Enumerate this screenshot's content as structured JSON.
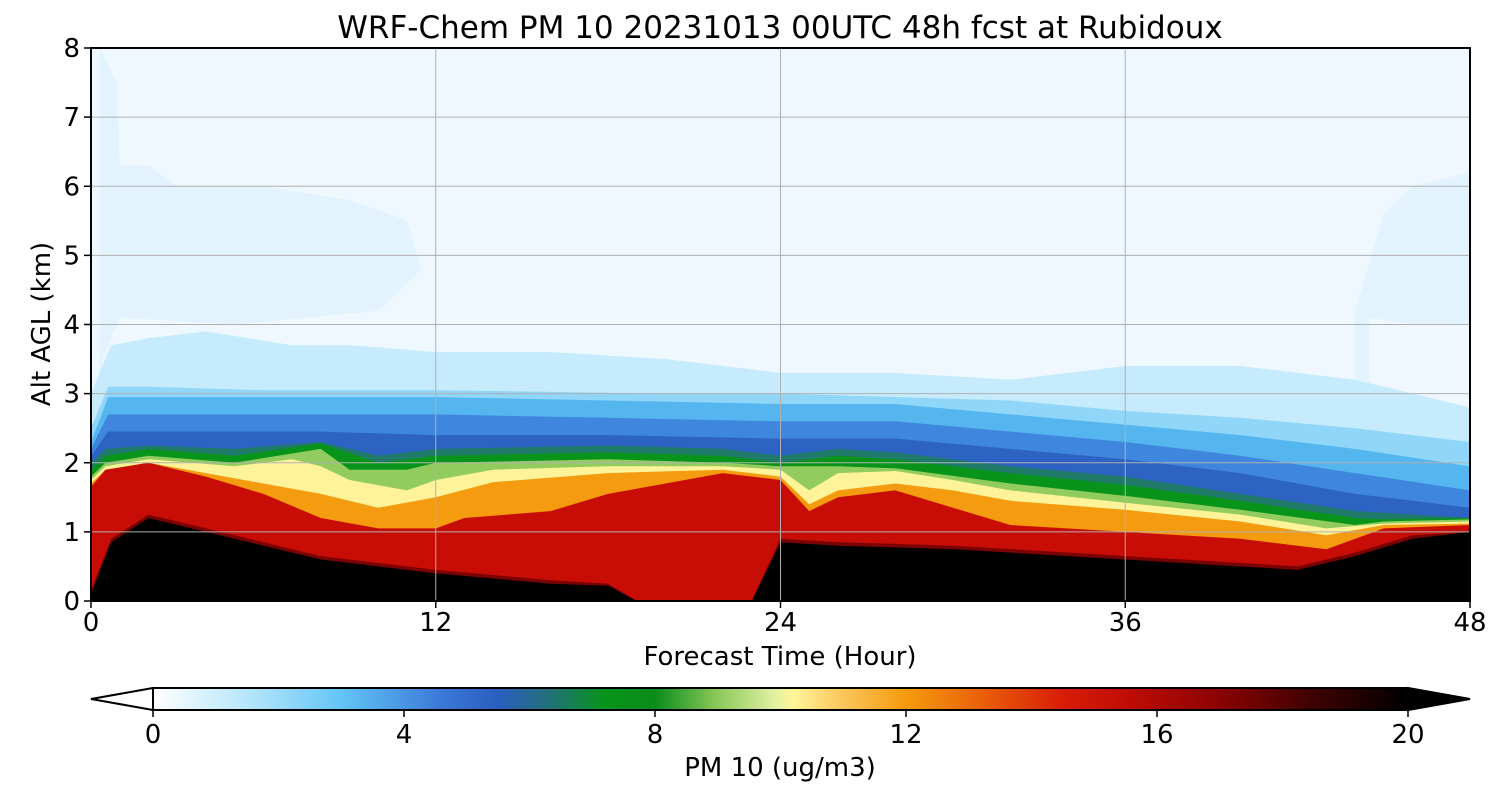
{
  "chart_data": {
    "type": "heatmap",
    "title": "WRF-Chem PM 10  20231013 00UTC 48h fcst at Rubidoux",
    "xlabel": "Forecast Time (Hour)",
    "ylabel": "Alt AGL (km)",
    "xlim": [
      0,
      48
    ],
    "ylim": [
      0,
      8
    ],
    "xticks": [
      0,
      12,
      24,
      36,
      48
    ],
    "yticks": [
      0,
      1,
      2,
      3,
      4,
      5,
      6,
      7,
      8
    ],
    "grid": true,
    "colorbar": {
      "label": "PM 10  (ug/m3)",
      "min": 0,
      "max": 20,
      "ticks": [
        0,
        4,
        8,
        12,
        16,
        20
      ],
      "extend": "both",
      "orientation": "horizontal",
      "stops": [
        {
          "value": 0,
          "color": "#ffffff"
        },
        {
          "value": 1.5,
          "color": "#b7e6fb"
        },
        {
          "value": 3,
          "color": "#63c5f5"
        },
        {
          "value": 4.6,
          "color": "#3a78d8"
        },
        {
          "value": 5.5,
          "color": "#2a5fbf"
        },
        {
          "value": 6.3,
          "color": "#23707a"
        },
        {
          "value": 7.2,
          "color": "#07941a"
        },
        {
          "value": 8,
          "color": "#0a8c1a"
        },
        {
          "value": 9,
          "color": "#8cc95a"
        },
        {
          "value": 9.9,
          "color": "#e0f0a0"
        },
        {
          "value": 10.2,
          "color": "#fff59a"
        },
        {
          "value": 11,
          "color": "#fbc55a"
        },
        {
          "value": 12,
          "color": "#f59b0c"
        },
        {
          "value": 13,
          "color": "#ec6a0a"
        },
        {
          "value": 14.5,
          "color": "#d81d07"
        },
        {
          "value": 15.5,
          "color": "#c00d06"
        },
        {
          "value": 17,
          "color": "#8a0303"
        },
        {
          "value": 18.5,
          "color": "#3e0101"
        },
        {
          "value": 20,
          "color": "#000000"
        }
      ]
    },
    "layers": [
      {
        "ge": 0.3,
        "color": "#eef8fe",
        "top": [
          [
            0,
            8
          ],
          [
            48,
            8
          ]
        ]
      },
      {
        "ge": 0.8,
        "color": "#e2f3fd",
        "top": [
          [
            0.3,
            8
          ],
          [
            0.9,
            7.5
          ],
          [
            1,
            6.3
          ],
          [
            2,
            6.3
          ],
          [
            3,
            6.0
          ],
          [
            6,
            6.0
          ],
          [
            9,
            5.8
          ],
          [
            11,
            5.5
          ],
          [
            11.5,
            4.8
          ],
          [
            10,
            4.2
          ],
          [
            5,
            4.0
          ],
          [
            1,
            4.1
          ],
          [
            0.4,
            3.5
          ]
        ]
      },
      {
        "ge": 0.8,
        "color": "#e2f3fd",
        "top": [
          [
            44,
            4.2
          ],
          [
            45,
            5.6
          ],
          [
            46,
            6.0
          ],
          [
            48,
            6.2
          ],
          [
            48,
            4.0
          ],
          [
            46,
            4.0
          ],
          [
            44.5,
            4.1
          ]
        ]
      },
      {
        "ge": 1.5,
        "color": "#c6ebfc",
        "top": [
          [
            0,
            3.0
          ],
          [
            0.7,
            3.7
          ],
          [
            2,
            3.8
          ],
          [
            4,
            3.9
          ],
          [
            7,
            3.7
          ],
          [
            9,
            3.7
          ],
          [
            12,
            3.6
          ],
          [
            16,
            3.6
          ],
          [
            20,
            3.5
          ],
          [
            24,
            3.3
          ],
          [
            28,
            3.3
          ],
          [
            32,
            3.2
          ],
          [
            36,
            3.4
          ],
          [
            40,
            3.4
          ],
          [
            44,
            3.2
          ],
          [
            46,
            3.0
          ],
          [
            48,
            2.8
          ]
        ]
      },
      {
        "ge": 2.5,
        "color": "#8fd6f8",
        "top": [
          [
            0,
            2.5
          ],
          [
            0.6,
            3.1
          ],
          [
            2,
            3.1
          ],
          [
            6,
            3.05
          ],
          [
            12,
            3.05
          ],
          [
            20,
            3.0
          ],
          [
            24,
            3.0
          ],
          [
            28,
            2.95
          ],
          [
            32,
            2.9
          ],
          [
            36,
            2.75
          ],
          [
            40,
            2.65
          ],
          [
            44,
            2.5
          ],
          [
            48,
            2.3
          ]
        ]
      },
      {
        "ge": 3.5,
        "color": "#55b6ef",
        "top": [
          [
            0,
            2.3
          ],
          [
            0.6,
            2.95
          ],
          [
            3,
            2.95
          ],
          [
            8,
            2.95
          ],
          [
            12,
            2.95
          ],
          [
            18,
            2.9
          ],
          [
            24,
            2.85
          ],
          [
            28,
            2.85
          ],
          [
            32,
            2.7
          ],
          [
            36,
            2.55
          ],
          [
            40,
            2.4
          ],
          [
            44,
            2.2
          ],
          [
            48,
            1.95
          ]
        ]
      },
      {
        "ge": 4.8,
        "color": "#3f86de",
        "top": [
          [
            0,
            2.2
          ],
          [
            0.6,
            2.7
          ],
          [
            3,
            2.7
          ],
          [
            8,
            2.7
          ],
          [
            12,
            2.7
          ],
          [
            18,
            2.65
          ],
          [
            24,
            2.6
          ],
          [
            28,
            2.6
          ],
          [
            32,
            2.45
          ],
          [
            36,
            2.3
          ],
          [
            40,
            2.1
          ],
          [
            44,
            1.85
          ],
          [
            48,
            1.6
          ]
        ]
      },
      {
        "ge": 5.6,
        "color": "#2d63c2",
        "top": [
          [
            0,
            2.1
          ],
          [
            0.6,
            2.45
          ],
          [
            3,
            2.45
          ],
          [
            8,
            2.45
          ],
          [
            12,
            2.4
          ],
          [
            18,
            2.4
          ],
          [
            24,
            2.35
          ],
          [
            28,
            2.35
          ],
          [
            32,
            2.2
          ],
          [
            36,
            2.05
          ],
          [
            40,
            1.85
          ],
          [
            44,
            1.55
          ],
          [
            48,
            1.35
          ]
        ]
      },
      {
        "ge": 6.6,
        "color": "#1f7a6a",
        "top": [
          [
            0,
            2.0
          ],
          [
            0.5,
            2.2
          ],
          [
            2,
            2.25
          ],
          [
            5,
            2.2
          ],
          [
            8,
            2.3
          ],
          [
            10,
            2.1
          ],
          [
            12,
            2.2
          ],
          [
            18,
            2.25
          ],
          [
            22,
            2.2
          ],
          [
            24,
            2.1
          ],
          [
            26,
            2.2
          ],
          [
            28,
            2.15
          ],
          [
            32,
            1.95
          ],
          [
            36,
            1.8
          ],
          [
            40,
            1.55
          ],
          [
            44,
            1.3
          ],
          [
            48,
            1.2
          ]
        ]
      },
      {
        "ge": 7.4,
        "color": "#08941a",
        "top": [
          [
            0,
            1.9
          ],
          [
            0.5,
            2.1
          ],
          [
            2,
            2.2
          ],
          [
            5,
            2.1
          ],
          [
            8,
            2.28
          ],
          [
            10,
            2.0
          ],
          [
            12,
            2.1
          ],
          [
            18,
            2.15
          ],
          [
            22,
            2.1
          ],
          [
            24,
            2.0
          ],
          [
            26,
            2.1
          ],
          [
            28,
            2.05
          ],
          [
            32,
            1.85
          ],
          [
            36,
            1.68
          ],
          [
            40,
            1.45
          ],
          [
            44,
            1.2
          ],
          [
            45,
            1.18
          ],
          [
            48,
            1.2
          ]
        ]
      },
      {
        "ge": 9.0,
        "color": "#93cc5e",
        "top": [
          [
            0,
            1.8
          ],
          [
            0.5,
            2.0
          ],
          [
            2,
            2.1
          ],
          [
            5,
            2.0
          ],
          [
            8,
            2.2
          ],
          [
            9,
            1.9
          ],
          [
            11,
            1.9
          ],
          [
            12,
            2.0
          ],
          [
            18,
            2.05
          ],
          [
            22,
            2.0
          ],
          [
            24,
            1.95
          ],
          [
            26,
            1.95
          ],
          [
            28,
            1.92
          ],
          [
            32,
            1.7
          ],
          [
            36,
            1.52
          ],
          [
            40,
            1.32
          ],
          [
            44,
            1.1
          ],
          [
            45,
            1.15
          ],
          [
            48,
            1.18
          ]
        ]
      },
      {
        "ge": 10.2,
        "color": "#fff39a",
        "top": [
          [
            0,
            1.75
          ],
          [
            0.5,
            1.95
          ],
          [
            2,
            2.05
          ],
          [
            5,
            1.95
          ],
          [
            7,
            2.05
          ],
          [
            8,
            1.95
          ],
          [
            9,
            1.75
          ],
          [
            11,
            1.6
          ],
          [
            12,
            1.75
          ],
          [
            14,
            1.9
          ],
          [
            18,
            1.95
          ],
          [
            22,
            1.95
          ],
          [
            24,
            1.9
          ],
          [
            25,
            1.6
          ],
          [
            26,
            1.85
          ],
          [
            28,
            1.88
          ],
          [
            30,
            1.75
          ],
          [
            32,
            1.6
          ],
          [
            36,
            1.42
          ],
          [
            40,
            1.25
          ],
          [
            43,
            1.05
          ],
          [
            45,
            1.12
          ],
          [
            48,
            1.15
          ]
        ]
      },
      {
        "ge": 12.0,
        "color": "#f59b10",
        "top": [
          [
            0,
            1.7
          ],
          [
            0.5,
            1.9
          ],
          [
            2,
            2.0
          ],
          [
            4,
            1.85
          ],
          [
            6,
            1.7
          ],
          [
            8,
            1.55
          ],
          [
            10,
            1.35
          ],
          [
            12,
            1.5
          ],
          [
            14,
            1.72
          ],
          [
            18,
            1.85
          ],
          [
            22,
            1.9
          ],
          [
            24,
            1.8
          ],
          [
            25,
            1.4
          ],
          [
            26,
            1.6
          ],
          [
            28,
            1.7
          ],
          [
            30,
            1.6
          ],
          [
            32,
            1.45
          ],
          [
            36,
            1.32
          ],
          [
            40,
            1.15
          ],
          [
            43,
            0.95
          ],
          [
            45,
            1.1
          ],
          [
            48,
            1.12
          ]
        ]
      },
      {
        "ge": 14.8,
        "color": "#c70d06",
        "top": [
          [
            0,
            1.65
          ],
          [
            0.5,
            1.9
          ],
          [
            2,
            2.0
          ],
          [
            4,
            1.8
          ],
          [
            6,
            1.55
          ],
          [
            8,
            1.2
          ],
          [
            10,
            1.05
          ],
          [
            12,
            1.05
          ],
          [
            13,
            1.2
          ],
          [
            16,
            1.3
          ],
          [
            18,
            1.55
          ],
          [
            22,
            1.85
          ],
          [
            24,
            1.75
          ],
          [
            25,
            1.3
          ],
          [
            26,
            1.5
          ],
          [
            28,
            1.6
          ],
          [
            30,
            1.35
          ],
          [
            32,
            1.1
          ],
          [
            36,
            1.0
          ],
          [
            40,
            0.9
          ],
          [
            43,
            0.75
          ],
          [
            45,
            1.05
          ],
          [
            48,
            1.1
          ]
        ]
      },
      {
        "ge": 17.5,
        "color": "#7a0202",
        "top": [
          [
            0,
            0.15
          ],
          [
            0.7,
            0.9
          ],
          [
            2,
            1.25
          ],
          [
            4,
            1.05
          ],
          [
            6,
            0.85
          ],
          [
            8,
            0.65
          ],
          [
            12,
            0.45
          ],
          [
            16,
            0.3
          ],
          [
            18,
            0.25
          ],
          [
            19,
            0.0
          ],
          [
            23,
            0.0
          ],
          [
            24,
            0.9
          ],
          [
            26,
            0.85
          ],
          [
            30,
            0.8
          ],
          [
            34,
            0.7
          ],
          [
            38,
            0.6
          ],
          [
            42,
            0.5
          ],
          [
            44,
            0.7
          ],
          [
            46,
            0.95
          ],
          [
            48,
            1.0
          ]
        ]
      },
      {
        "ge": 19.5,
        "color": "#000000",
        "top": [
          [
            0,
            0.1
          ],
          [
            0.7,
            0.85
          ],
          [
            2,
            1.2
          ],
          [
            4,
            1.0
          ],
          [
            6,
            0.8
          ],
          [
            8,
            0.6
          ],
          [
            12,
            0.4
          ],
          [
            16,
            0.25
          ],
          [
            18,
            0.22
          ],
          [
            19,
            0.0
          ],
          [
            23,
            0.0
          ],
          [
            24,
            0.85
          ],
          [
            26,
            0.8
          ],
          [
            30,
            0.75
          ],
          [
            34,
            0.65
          ],
          [
            38,
            0.55
          ],
          [
            42,
            0.45
          ],
          [
            44,
            0.65
          ],
          [
            46,
            0.9
          ],
          [
            48,
            1.0
          ]
        ]
      }
    ]
  }
}
